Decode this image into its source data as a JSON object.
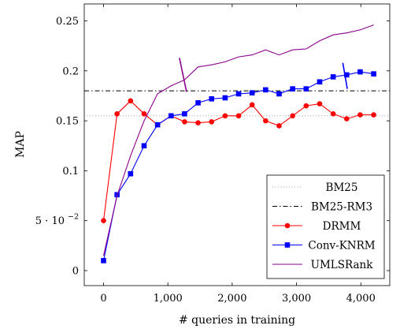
{
  "chart_data": {
    "type": "line",
    "title": "",
    "xlabel": "# queries in training",
    "ylabel": "MAP",
    "xlim": [
      -300,
      4450
    ],
    "ylim": [
      -0.015,
      0.267
    ],
    "grid": false,
    "legend_position": "bottom-right",
    "x_ticks": [
      0,
      1000,
      2000,
      3000,
      4000
    ],
    "x_tick_labels": [
      "0",
      "1,000",
      "2,000",
      "3,000",
      "4,000"
    ],
    "y_ticks": [
      0,
      0.05,
      0.1,
      0.15,
      0.2,
      0.25
    ],
    "y_tick_labels": [
      "0",
      "5 · 10",
      "0.1",
      "0.15",
      "0.2",
      "0.25"
    ],
    "y_tick_exponent": "−2",
    "series": [
      {
        "name": "BM25",
        "color": "#a0a0a0",
        "style": "dotted",
        "marker": "none",
        "x": [
          -300,
          4450
        ],
        "y": [
          0.155,
          0.155
        ]
      },
      {
        "name": "BM25-RM3",
        "color": "#000000",
        "style": "dashdot",
        "marker": "none",
        "x": [
          -300,
          4450
        ],
        "y": [
          0.18,
          0.18
        ]
      },
      {
        "name": "DRMM",
        "color": "#ff0000",
        "style": "solid",
        "marker": "circle",
        "x": [
          0,
          210,
          420,
          630,
          840,
          1050,
          1260,
          1470,
          1680,
          1890,
          2100,
          2310,
          2520,
          2730,
          2940,
          3150,
          3360,
          3570,
          3780,
          3990,
          4200
        ],
        "y": [
          0.05,
          0.157,
          0.17,
          0.157,
          0.146,
          0.155,
          0.149,
          0.148,
          0.149,
          0.155,
          0.155,
          0.166,
          0.15,
          0.145,
          0.155,
          0.165,
          0.167,
          0.157,
          0.152,
          0.156,
          0.156
        ]
      },
      {
        "name": "Conv-KNRM",
        "color": "#0000ff",
        "style": "solid",
        "marker": "square",
        "x": [
          0,
          210,
          420,
          630,
          840,
          1050,
          1260,
          1470,
          1680,
          1890,
          2100,
          2310,
          2520,
          2730,
          2940,
          3150,
          3360,
          3570,
          3780,
          3990,
          4200
        ],
        "y": [
          0.01,
          0.076,
          0.097,
          0.125,
          0.146,
          0.155,
          0.157,
          0.168,
          0.172,
          0.173,
          0.177,
          0.178,
          0.181,
          0.177,
          0.182,
          0.182,
          0.189,
          0.194,
          0.196,
          0.199,
          0.197
        ]
      },
      {
        "name": "UMLSRank",
        "color": "#8b008b",
        "style": "solid",
        "marker": "none",
        "x": [
          0,
          210,
          420,
          630,
          840,
          1050,
          1260,
          1470,
          1680,
          1890,
          2100,
          2310,
          2520,
          2730,
          2940,
          3150,
          3360,
          3570,
          3780,
          3990,
          4200
        ],
        "y": [
          0.015,
          0.075,
          0.115,
          0.15,
          0.177,
          0.185,
          0.191,
          0.204,
          0.206,
          0.209,
          0.214,
          0.216,
          0.221,
          0.216,
          0.221,
          0.222,
          0.23,
          0.236,
          0.238,
          0.241,
          0.246
        ]
      }
    ],
    "annotations": [
      {
        "type": "tick-mark",
        "color": "#8b008b",
        "x1": 1180,
        "y1": 0.213,
        "x2": 1290,
        "y2": 0.179
      },
      {
        "type": "tick-mark",
        "color": "#0000ff",
        "x1": 3720,
        "y1": 0.208,
        "x2": 3790,
        "y2": 0.182
      }
    ]
  }
}
